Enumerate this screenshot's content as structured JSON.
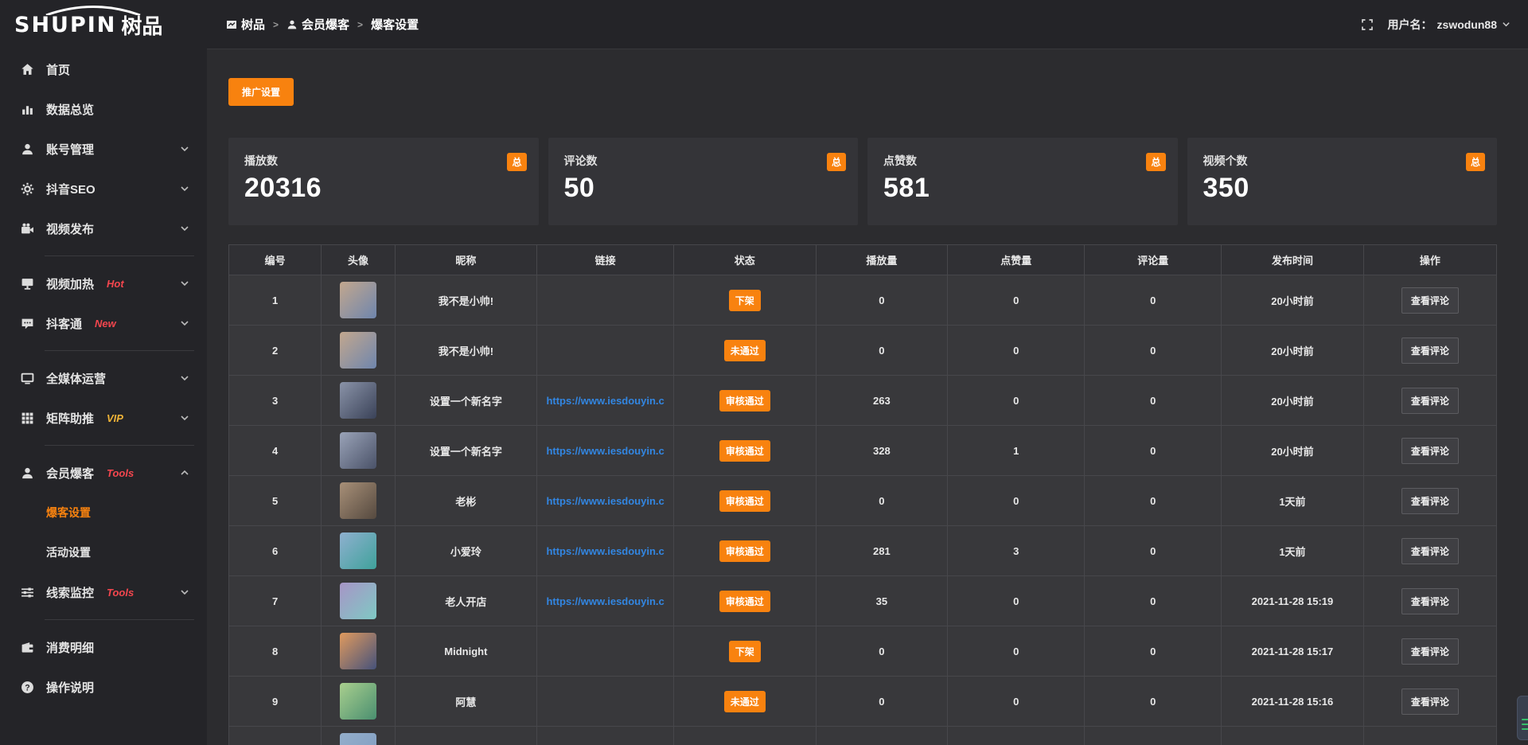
{
  "logo": {
    "en": "SHUPIN",
    "cn": "树品"
  },
  "topbar": {
    "breadcrumb": [
      {
        "label": "树品",
        "icon": "dashboard-icon"
      },
      {
        "label": "会员爆客",
        "icon": "user-icon"
      },
      {
        "label": "爆客设置",
        "icon": ""
      }
    ],
    "separator": ">",
    "username_label": "用户名：",
    "username": "zswodun88"
  },
  "sidebar": {
    "items": [
      {
        "name": "home",
        "label": "首页",
        "icon": "home-icon"
      },
      {
        "name": "data-overview",
        "label": "数据总览",
        "icon": "chart-icon"
      },
      {
        "name": "account-management",
        "label": "账号管理",
        "icon": "user-icon",
        "chevron": "down"
      },
      {
        "name": "douyin-seo",
        "label": "抖音SEO",
        "icon": "gear-icon",
        "chevron": "down"
      },
      {
        "name": "video-publish",
        "label": "视频发布",
        "icon": "video-icon",
        "chevron": "down"
      },
      {
        "type": "divider"
      },
      {
        "name": "video-heating",
        "label": "视频加热",
        "icon": "screen-icon",
        "tag": "Hot",
        "tag_color": "red",
        "chevron": "down"
      },
      {
        "name": "douketong",
        "label": "抖客通",
        "icon": "comment-icon",
        "tag": "New",
        "tag_color": "red",
        "chevron": "down"
      },
      {
        "type": "divider"
      },
      {
        "name": "all-media-operation",
        "label": "全媒体运营",
        "icon": "monitor-icon",
        "chevron": "down"
      },
      {
        "name": "matrix-boost",
        "label": "矩阵助推",
        "icon": "grid-icon",
        "tag": "VIP",
        "tag_color": "gold",
        "chevron": "down"
      },
      {
        "type": "divider"
      },
      {
        "name": "member-baoke",
        "label": "会员爆客",
        "icon": "user-icon",
        "tag": "Tools",
        "tag_color": "red",
        "chevron": "up",
        "children": [
          {
            "name": "baoke-settings",
            "label": "爆客设置",
            "active": true
          },
          {
            "name": "activity-settings",
            "label": "活动设置"
          }
        ]
      },
      {
        "name": "clue-monitor",
        "label": "线索监控",
        "icon": "sliders-icon",
        "tag": "Tools",
        "tag_color": "red",
        "chevron": "down"
      },
      {
        "type": "divider"
      },
      {
        "name": "consumption-details",
        "label": "消费明细",
        "icon": "wallet-icon"
      },
      {
        "name": "operation-guide",
        "label": "操作说明",
        "icon": "question-icon"
      }
    ]
  },
  "toolbar": {
    "promo_button": "推广设置"
  },
  "stats": [
    {
      "label": "播放数",
      "value": "20316",
      "badge": "总"
    },
    {
      "label": "评论数",
      "value": "50",
      "badge": "总"
    },
    {
      "label": "点赞数",
      "value": "581",
      "badge": "总"
    },
    {
      "label": "视频个数",
      "value": "350",
      "badge": "总"
    }
  ],
  "table": {
    "headers": [
      "编号",
      "头像",
      "昵称",
      "链接",
      "状态",
      "播放量",
      "点赞量",
      "评论量",
      "发布时间",
      "操作"
    ],
    "col_widths": [
      "7.3%",
      "5.8%",
      "11.2%",
      "10.8%",
      "11.2%",
      "10.4%",
      "10.8%",
      "10.8%",
      "11.2%",
      "10.5%"
    ],
    "action_label": "查看评论",
    "rows": [
      {
        "id": "1",
        "nickname": "我不是小帅!",
        "link": "",
        "status": "下架",
        "plays": "0",
        "likes": "0",
        "comments": "0",
        "time": "20小时前",
        "action": "查看评论",
        "avatar": [
          "#c2a78e",
          "#6f86ad"
        ]
      },
      {
        "id": "2",
        "nickname": "我不是小帅!",
        "link": "",
        "status": "未通过",
        "plays": "0",
        "likes": "0",
        "comments": "0",
        "time": "20小时前",
        "action": "查看评论",
        "avatar": [
          "#c2a78e",
          "#6f86ad"
        ]
      },
      {
        "id": "3",
        "nickname": "设置一个新名字",
        "link": "https://www.iesdouyin.c",
        "status": "审核通过",
        "plays": "263",
        "likes": "0",
        "comments": "0",
        "time": "20小时前",
        "action": "查看评论",
        "avatar": [
          "#8a93a8",
          "#3a4258"
        ]
      },
      {
        "id": "4",
        "nickname": "设置一个新名字",
        "link": "https://www.iesdouyin.c",
        "status": "审核通过",
        "plays": "328",
        "likes": "1",
        "comments": "0",
        "time": "20小时前",
        "action": "查看评论",
        "avatar": [
          "#9aa3b8",
          "#4a5268"
        ]
      },
      {
        "id": "5",
        "nickname": "老彬",
        "link": "https://www.iesdouyin.c",
        "status": "审核通过",
        "plays": "0",
        "likes": "0",
        "comments": "0",
        "time": "1天前",
        "action": "查看评论",
        "avatar": [
          "#a89078",
          "#55493f"
        ]
      },
      {
        "id": "6",
        "nickname": "小爱玲",
        "link": "https://www.iesdouyin.c",
        "status": "审核通过",
        "plays": "281",
        "likes": "3",
        "comments": "0",
        "time": "1天前",
        "action": "查看评论",
        "avatar": [
          "#8fb0cf",
          "#3fa29b"
        ]
      },
      {
        "id": "7",
        "nickname": "老人开店",
        "link": "https://www.iesdouyin.c",
        "status": "审核通过",
        "plays": "35",
        "likes": "0",
        "comments": "0",
        "time": "2021-11-28 15:19",
        "action": "查看评论",
        "avatar": [
          "#a795c6",
          "#7fc9c4"
        ]
      },
      {
        "id": "8",
        "nickname": "Midnight",
        "link": "",
        "status": "下架",
        "plays": "0",
        "likes": "0",
        "comments": "0",
        "time": "2021-11-28 15:17",
        "action": "查看评论",
        "avatar": [
          "#e09a5e",
          "#46527a"
        ]
      },
      {
        "id": "9",
        "nickname": "阿慧",
        "link": "",
        "status": "未通过",
        "plays": "0",
        "likes": "0",
        "comments": "0",
        "time": "2021-11-28 15:16",
        "action": "查看评论",
        "avatar": [
          "#a9cf8e",
          "#4a8f70"
        ]
      },
      {
        "id": "",
        "nickname": "",
        "link": "",
        "status": "",
        "plays": "",
        "likes": "",
        "comments": "",
        "time": "",
        "action": "",
        "avatar": [
          "#93aecb",
          "#7f9cc0"
        ],
        "partial": true
      }
    ]
  },
  "colors": {
    "accent": "#f8820f",
    "link": "#3286e2",
    "hot": "#f4464e",
    "vip": "#f0b437"
  }
}
